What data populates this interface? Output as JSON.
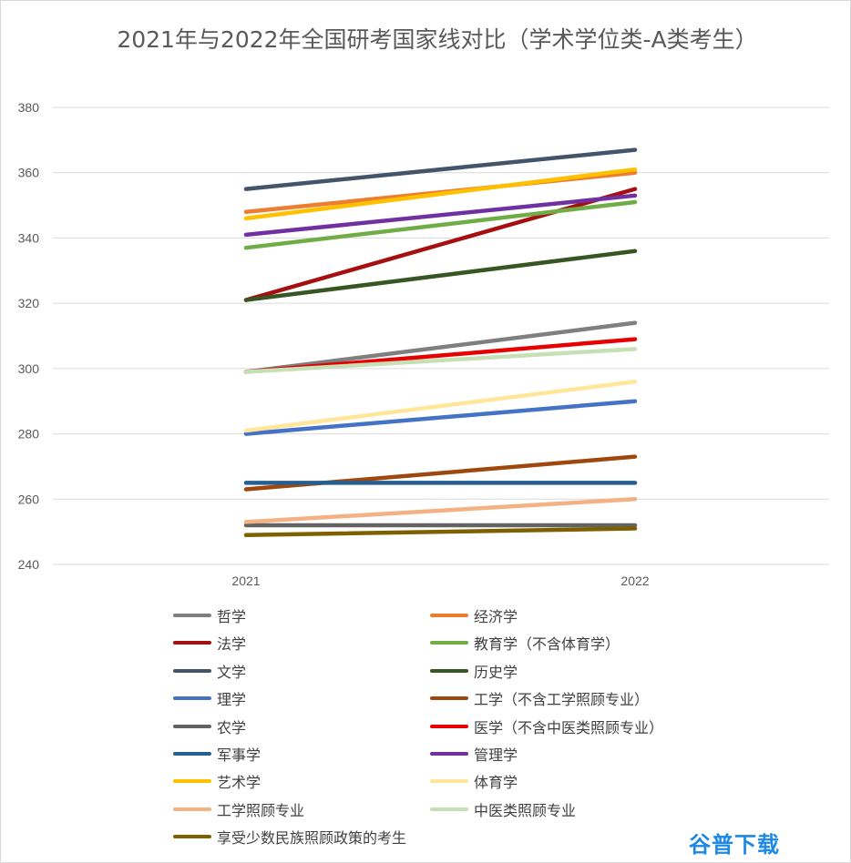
{
  "chart_data": {
    "type": "line",
    "title": "2021年与2022年全国研考国家线对比（学术学位类-A类考生）",
    "categories": [
      "2021",
      "2022"
    ],
    "ylim": [
      240,
      380
    ],
    "yticks": [
      240,
      260,
      280,
      300,
      320,
      340,
      360,
      380
    ],
    "grid": true,
    "legend_position": "bottom",
    "series": [
      {
        "name": "哲学",
        "values": [
          299,
          314
        ],
        "color": "#7f7f7f"
      },
      {
        "name": "经济学",
        "values": [
          348,
          360
        ],
        "color": "#ed7d31"
      },
      {
        "name": "法学",
        "values": [
          321,
          355
        ],
        "color": "#a50f0f"
      },
      {
        "name": "教育学（不含体育学）",
        "values": [
          337,
          351
        ],
        "color": "#70ad47"
      },
      {
        "name": "文学",
        "values": [
          355,
          367
        ],
        "color": "#44546a"
      },
      {
        "name": "历史学",
        "values": [
          321,
          336
        ],
        "color": "#375623"
      },
      {
        "name": "理学",
        "values": [
          280,
          290
        ],
        "color": "#4472c4"
      },
      {
        "name": "工学（不含工学照顾专业）",
        "values": [
          263,
          273
        ],
        "color": "#9e480e"
      },
      {
        "name": "农学",
        "values": [
          252,
          252
        ],
        "color": "#636363"
      },
      {
        "name": "医学（不含中医类照顾专业）",
        "values": [
          299,
          309
        ],
        "color": "#e60000"
      },
      {
        "name": "军事学",
        "values": [
          265,
          265
        ],
        "color": "#255e91"
      },
      {
        "name": "管理学",
        "values": [
          341,
          353
        ],
        "color": "#7030a0"
      },
      {
        "name": "艺术学",
        "values": [
          346,
          361
        ],
        "color": "#ffc000"
      },
      {
        "name": "体育学",
        "values": [
          281,
          296
        ],
        "color": "#ffe699"
      },
      {
        "name": "工学照顾专业",
        "values": [
          253,
          260
        ],
        "color": "#f4b183"
      },
      {
        "name": "中医类照顾专业",
        "values": [
          299,
          306
        ],
        "color": "#c5e0b4"
      },
      {
        "name": "享受少数民族照顾政策的考生",
        "values": [
          249,
          251
        ],
        "color": "#7f6000"
      }
    ]
  },
  "watermark": "谷普下载"
}
